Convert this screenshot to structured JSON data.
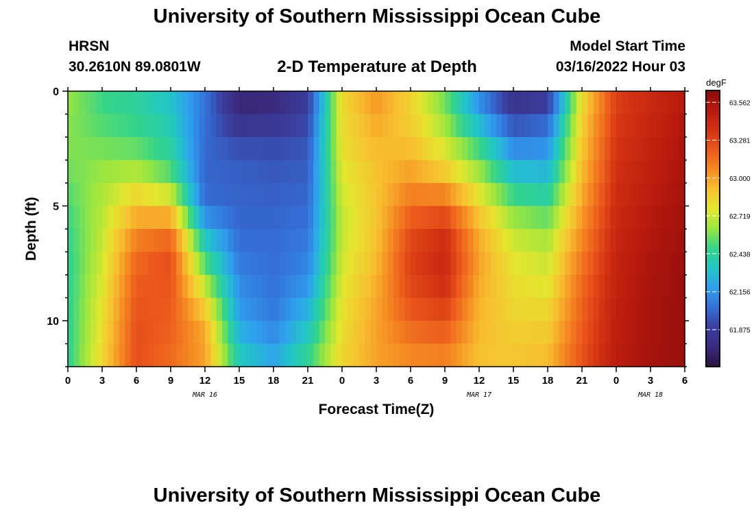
{
  "header": {
    "title": "University of Southern Mississippi Ocean Cube",
    "station": "HRSN",
    "coords": "30.2610N  89.0801W",
    "subtitle": "2-D Temperature at Depth",
    "start_label": "Model Start Time",
    "start_value": "03/16/2022 Hour 03"
  },
  "footer": {
    "title": "University of Southern Mississippi Ocean Cube"
  },
  "chart_data": {
    "type": "heatmap",
    "title": "2-D Temperature at Depth",
    "xlabel": "Forecast Time(Z)",
    "ylabel": "Depth (ft)",
    "x_hours_range": [
      0,
      54
    ],
    "x_ticks": [
      {
        "hour": 0,
        "label": "0"
      },
      {
        "hour": 3,
        "label": "3"
      },
      {
        "hour": 6,
        "label": "6"
      },
      {
        "hour": 9,
        "label": "9"
      },
      {
        "hour": 12,
        "label": "12"
      },
      {
        "hour": 15,
        "label": "15"
      },
      {
        "hour": 18,
        "label": "18"
      },
      {
        "hour": 21,
        "label": "21"
      },
      {
        "hour": 24,
        "label": "0"
      },
      {
        "hour": 27,
        "label": "3"
      },
      {
        "hour": 30,
        "label": "6"
      },
      {
        "hour": 33,
        "label": "9"
      },
      {
        "hour": 36,
        "label": "12"
      },
      {
        "hour": 39,
        "label": "15"
      },
      {
        "hour": 42,
        "label": "18"
      },
      {
        "hour": 45,
        "label": "21"
      },
      {
        "hour": 48,
        "label": "0"
      },
      {
        "hour": 51,
        "label": "3"
      },
      {
        "hour": 54,
        "label": "6"
      }
    ],
    "date_labels": [
      {
        "hour": 12,
        "label": "MAR 16"
      },
      {
        "hour": 36,
        "label": "MAR 17"
      },
      {
        "hour": 51,
        "label": "MAR 18"
      }
    ],
    "y_range_ft": [
      0,
      12
    ],
    "y_ticks": [
      {
        "value": 0,
        "label": "0"
      },
      {
        "value": 5,
        "label": "5"
      },
      {
        "value": 10,
        "label": "10"
      }
    ],
    "colorbar": {
      "unit": "degF",
      "range": [
        61.6,
        63.65
      ],
      "ticks": [
        "63.562",
        "63.281",
        "63.000",
        "62.719",
        "62.438",
        "62.156",
        "61.875"
      ],
      "colors": [
        "#2a1440",
        "#3b2a80",
        "#3a3f9e",
        "#3470d8",
        "#2fa0ee",
        "#22c6c6",
        "#34d48a",
        "#98e640",
        "#e4e62e",
        "#f8c030",
        "#f58a22",
        "#ec5a1c",
        "#d23212",
        "#b81a0e",
        "#8c0a0a"
      ]
    },
    "depth_levels_ft": [
      0,
      1,
      2,
      3,
      4,
      5,
      6,
      7,
      8,
      9,
      10,
      11,
      12
    ],
    "time_hours": [
      0,
      3,
      6,
      9,
      12,
      15,
      18,
      21,
      24,
      27,
      30,
      33,
      36,
      39,
      42,
      45,
      48,
      51,
      54
    ],
    "values_degF": [
      [
        62.65,
        62.48,
        62.42,
        62.3,
        62.05,
        61.7,
        61.72,
        61.85,
        62.85,
        63.05,
        62.85,
        62.55,
        62.1,
        61.75,
        61.8,
        62.8,
        63.3,
        63.4,
        63.5
      ],
      [
        62.6,
        62.5,
        62.45,
        62.35,
        62.05,
        61.75,
        61.78,
        61.9,
        62.8,
        63.0,
        62.85,
        62.6,
        62.2,
        61.88,
        61.95,
        62.85,
        63.32,
        63.42,
        63.52
      ],
      [
        62.6,
        62.55,
        62.5,
        62.4,
        62.02,
        61.9,
        61.9,
        61.95,
        62.82,
        62.95,
        62.9,
        62.7,
        62.4,
        62.05,
        62.1,
        62.88,
        63.34,
        63.44,
        63.54
      ],
      [
        62.58,
        62.6,
        62.6,
        62.45,
        62.02,
        61.98,
        61.96,
        61.98,
        62.78,
        62.92,
        62.95,
        62.8,
        62.58,
        62.2,
        62.2,
        62.9,
        63.36,
        63.46,
        63.55
      ],
      [
        62.55,
        62.65,
        62.75,
        62.6,
        62.0,
        62.0,
        61.98,
        62.0,
        62.75,
        62.9,
        63.05,
        62.95,
        62.7,
        62.4,
        62.35,
        62.95,
        63.38,
        63.48,
        63.56
      ],
      [
        62.5,
        62.68,
        62.9,
        62.85,
        62.05,
        62.0,
        62.0,
        62.02,
        62.72,
        62.9,
        63.15,
        63.2,
        62.85,
        62.55,
        62.48,
        63.0,
        63.4,
        63.5,
        63.57
      ],
      [
        62.48,
        62.7,
        63.05,
        63.1,
        62.25,
        62.02,
        62.02,
        62.05,
        62.7,
        62.9,
        63.25,
        63.35,
        62.95,
        62.7,
        62.62,
        63.05,
        63.42,
        63.52,
        63.58
      ],
      [
        62.45,
        62.72,
        63.15,
        63.25,
        62.45,
        62.05,
        62.03,
        62.08,
        62.72,
        62.92,
        63.3,
        63.42,
        63.0,
        62.75,
        62.7,
        63.1,
        63.44,
        63.54,
        63.59
      ],
      [
        62.45,
        62.75,
        63.2,
        63.25,
        62.6,
        62.1,
        62.04,
        62.12,
        62.75,
        62.95,
        63.3,
        63.4,
        63.0,
        62.8,
        62.75,
        63.15,
        63.45,
        63.55,
        63.6
      ],
      [
        62.45,
        62.78,
        63.22,
        63.22,
        62.8,
        62.15,
        62.05,
        62.2,
        62.78,
        62.98,
        63.25,
        63.35,
        62.95,
        62.82,
        62.8,
        63.18,
        63.46,
        63.56,
        63.6
      ],
      [
        62.45,
        62.8,
        63.25,
        63.2,
        62.95,
        62.2,
        62.08,
        62.3,
        62.8,
        63.0,
        63.2,
        63.25,
        62.95,
        62.85,
        62.85,
        63.2,
        63.47,
        63.56,
        63.6
      ],
      [
        62.45,
        62.82,
        63.25,
        63.18,
        63.0,
        62.3,
        62.15,
        62.4,
        62.82,
        63.0,
        63.1,
        63.15,
        62.92,
        62.88,
        62.9,
        63.22,
        63.48,
        63.56,
        63.6
      ],
      [
        62.45,
        62.85,
        63.25,
        63.15,
        63.0,
        62.4,
        62.25,
        62.5,
        62.85,
        63.0,
        63.05,
        63.05,
        62.9,
        62.9,
        62.95,
        63.25,
        63.5,
        63.57,
        63.6
      ]
    ]
  }
}
